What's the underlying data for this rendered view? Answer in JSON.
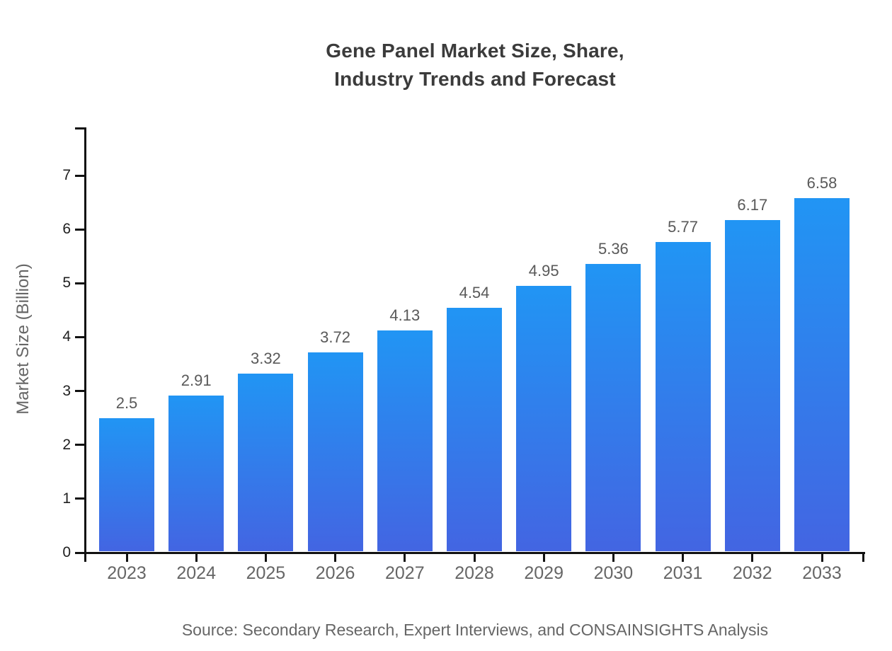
{
  "title": {
    "line1": "Gene Panel Market Size, Share,",
    "line2": "Industry Trends and Forecast"
  },
  "source": "Source: Secondary Research, Expert Interviews, and CONSAINSIGHTS Analysis",
  "chart_data": {
    "type": "bar",
    "title": "Gene Panel Market Size, Share, Industry Trends and Forecast",
    "categories": [
      "2023",
      "2024",
      "2025",
      "2026",
      "2027",
      "2028",
      "2029",
      "2030",
      "2031",
      "2032",
      "2033"
    ],
    "values": [
      2.5,
      2.91,
      3.32,
      3.72,
      4.13,
      4.54,
      4.95,
      5.36,
      5.77,
      6.17,
      6.58
    ],
    "value_labels": [
      "2.5",
      "2.91",
      "3.32",
      "3.72",
      "4.13",
      "4.54",
      "4.95",
      "5.36",
      "5.77",
      "6.17",
      "6.58"
    ],
    "xlabel": "",
    "ylabel": "Market Size (Billion)",
    "ylim": [
      0,
      7.89
    ],
    "yticks": [
      0,
      1,
      2,
      3,
      4,
      5,
      6,
      7
    ],
    "grid": false,
    "legend": "none",
    "colors": {
      "bar_gradient_top": "#2195f4",
      "bar_gradient_bottom": "#4365e2",
      "axis": "#111111",
      "x_tick_label": "#666666",
      "y_tick_label": "#1f1f1f",
      "value_label": "#595959",
      "title": "#3b3b3b",
      "caption": "#666666"
    }
  }
}
